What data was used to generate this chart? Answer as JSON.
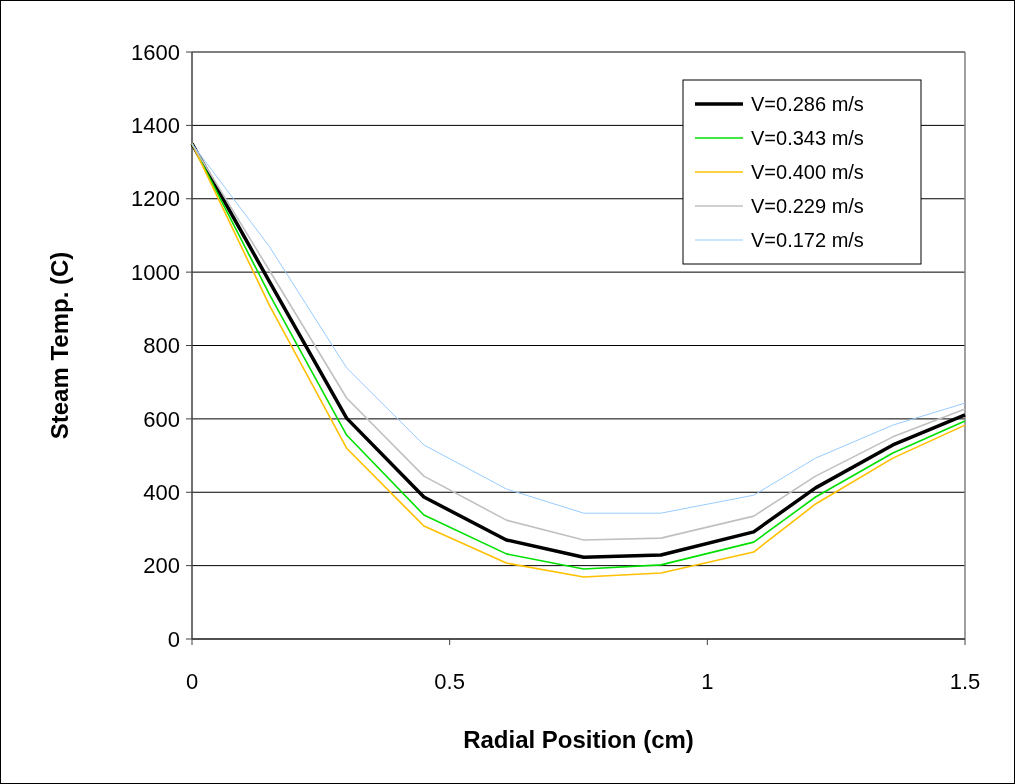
{
  "chart_data": {
    "type": "line",
    "xlabel": "Radial Position (cm)",
    "ylabel": "Steam Temp. (C)",
    "x": [
      0,
      0.15,
      0.3,
      0.45,
      0.61,
      0.76,
      0.91,
      1.09,
      1.21,
      1.36,
      1.5
    ],
    "xlim": [
      0,
      1.5
    ],
    "xticks": [
      0,
      0.5,
      1,
      1.5
    ],
    "ylim": [
      0,
      1600
    ],
    "yticks": [
      0,
      200,
      400,
      600,
      800,
      1000,
      1200,
      1400,
      1600
    ],
    "grid": "y",
    "legend": "top right",
    "marker": "none",
    "line_style": "solid",
    "series": [
      {
        "name": "V=0.286 m/s",
        "color": "#000000",
        "values": [
          1350,
          975,
          602,
          387,
          270,
          223,
          229,
          292,
          412,
          529,
          611
        ]
      },
      {
        "name": "V=0.343 m/s",
        "color": "#00e000",
        "values": [
          1350,
          940,
          556,
          338,
          232,
          191,
          202,
          264,
          387,
          507,
          594
        ]
      },
      {
        "name": "V=0.400 m/s",
        "color": "#ffc000",
        "values": [
          1350,
          910,
          520,
          308,
          207,
          169,
          180,
          237,
          368,
          493,
          583
        ]
      },
      {
        "name": "V=0.229 m/s",
        "color": "#c0c0c0",
        "values": [
          1350,
          1005,
          657,
          444,
          324,
          270,
          275,
          335,
          444,
          551,
          627
        ]
      },
      {
        "name": "V=0.172 m/s",
        "color": "#99ccff",
        "values": [
          1350,
          1070,
          739,
          529,
          409,
          343,
          343,
          392,
          493,
          583,
          643
        ]
      }
    ]
  }
}
